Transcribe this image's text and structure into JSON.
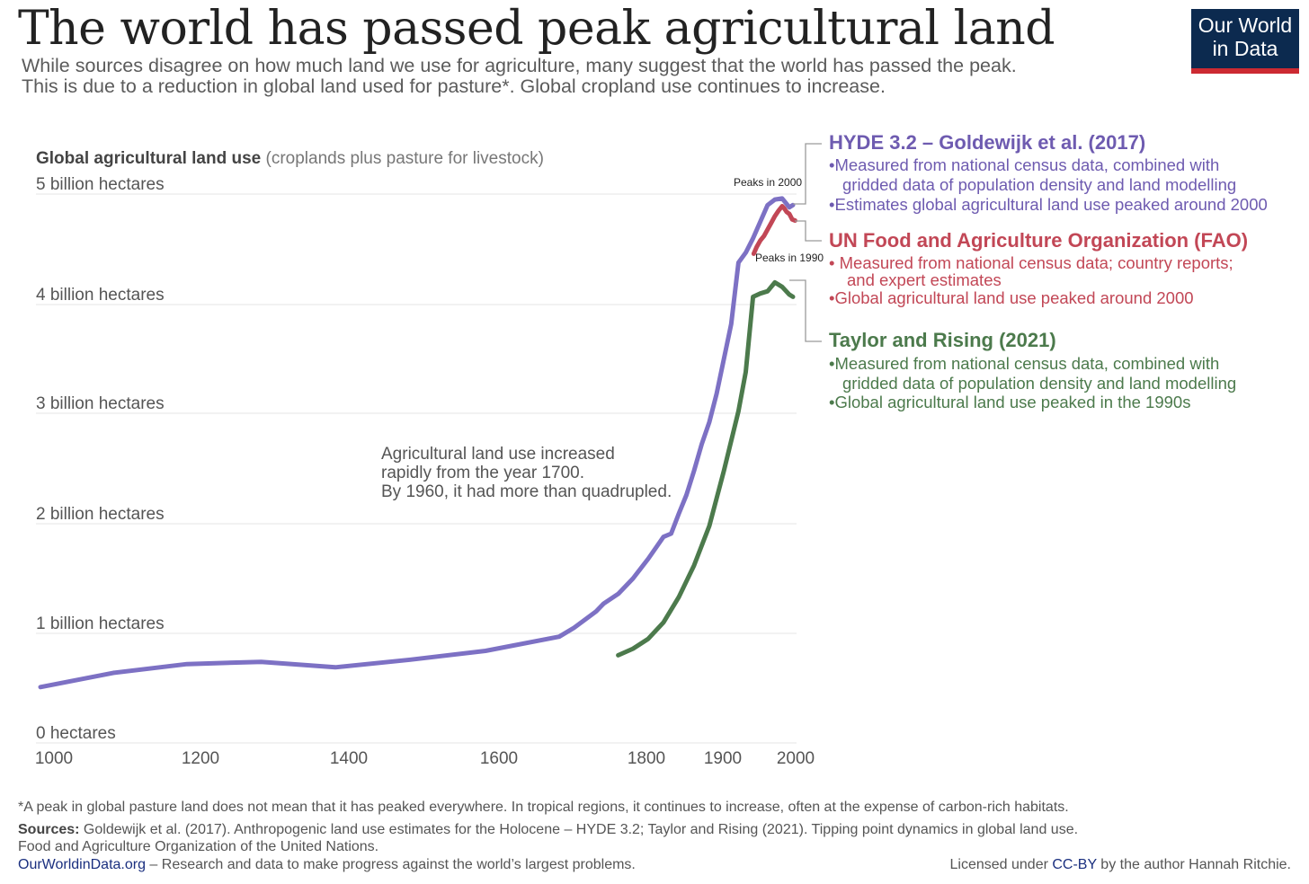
{
  "header": {
    "title": "The world has passed peak agricultural land",
    "subtitle_line1": "While sources disagree on how much land we use for agriculture, many suggest that the world has passed the peak.",
    "subtitle_line2": "This is due to a reduction in global land used for pasture*. Global cropland use continues to increase."
  },
  "logo": {
    "line1": "Our World",
    "line2": "in Data",
    "bg_color": "#0c2a4f",
    "accent_color": "#cc2a32"
  },
  "chart_data": {
    "type": "line",
    "title": "Global agricultural land use",
    "title_note": "(croplands plus pasture for livestock)",
    "ylabel": "billion hectares",
    "ylim": [
      0,
      5
    ],
    "y_ticks": [
      {
        "value": 0,
        "label": "0 hectares"
      },
      {
        "value": 1,
        "label": "1 billion hectares"
      },
      {
        "value": 2,
        "label": "2 billion hectares"
      },
      {
        "value": 3,
        "label": "3 billion hectares"
      },
      {
        "value": 4,
        "label": "4 billion hectares"
      },
      {
        "value": 5,
        "label": "5 billion hectares"
      }
    ],
    "x_ticks": [
      {
        "value": 1000,
        "label": "1000"
      },
      {
        "value": 1200,
        "label": "1200"
      },
      {
        "value": 1400,
        "label": "1400"
      },
      {
        "value": 1600,
        "label": "1600"
      },
      {
        "value": 1800,
        "label": "1800"
      },
      {
        "value": 1900,
        "label": "1900"
      },
      {
        "value": 2000,
        "label": "2000"
      }
    ],
    "series": [
      {
        "name": "HYDE 3.2 – Goldewijk et al. (2017)",
        "color": "#7d71c4",
        "points": [
          [
            1000,
            0.51
          ],
          [
            1100,
            0.64
          ],
          [
            1200,
            0.72
          ],
          [
            1300,
            0.74
          ],
          [
            1400,
            0.69
          ],
          [
            1500,
            0.76
          ],
          [
            1600,
            0.84
          ],
          [
            1700,
            0.97
          ],
          [
            1720,
            1.05
          ],
          [
            1750,
            1.2
          ],
          [
            1760,
            1.27
          ],
          [
            1780,
            1.36
          ],
          [
            1800,
            1.5
          ],
          [
            1820,
            1.68
          ],
          [
            1840,
            1.88
          ],
          [
            1850,
            1.91
          ],
          [
            1860,
            2.09
          ],
          [
            1870,
            2.26
          ],
          [
            1880,
            2.48
          ],
          [
            1890,
            2.72
          ],
          [
            1900,
            2.92
          ],
          [
            1910,
            3.18
          ],
          [
            1920,
            3.5
          ],
          [
            1930,
            3.82
          ],
          [
            1940,
            4.38
          ],
          [
            1950,
            4.47
          ],
          [
            1960,
            4.6
          ],
          [
            1970,
            4.75
          ],
          [
            1980,
            4.9
          ],
          [
            1990,
            4.95
          ],
          [
            2000,
            4.96
          ],
          [
            2005,
            4.92
          ],
          [
            2010,
            4.88
          ],
          [
            2015,
            4.9
          ]
        ]
      },
      {
        "name": "UN Food and Agriculture Organization (FAO)",
        "color": "#c24756",
        "points": [
          [
            1961,
            4.46
          ],
          [
            1965,
            4.52
          ],
          [
            1970,
            4.58
          ],
          [
            1975,
            4.62
          ],
          [
            1980,
            4.68
          ],
          [
            1985,
            4.74
          ],
          [
            1990,
            4.8
          ],
          [
            1995,
            4.85
          ],
          [
            2000,
            4.89
          ],
          [
            2003,
            4.87
          ],
          [
            2006,
            4.84
          ],
          [
            2010,
            4.82
          ],
          [
            2014,
            4.77
          ],
          [
            2018,
            4.76
          ]
        ]
      },
      {
        "name": "Taylor and Rising (2021)",
        "color": "#4c7a4c",
        "points": [
          [
            1780,
            0.8
          ],
          [
            1800,
            0.86
          ],
          [
            1820,
            0.95
          ],
          [
            1840,
            1.1
          ],
          [
            1860,
            1.33
          ],
          [
            1880,
            1.62
          ],
          [
            1900,
            1.98
          ],
          [
            1920,
            2.48
          ],
          [
            1940,
            3.02
          ],
          [
            1950,
            3.38
          ],
          [
            1960,
            4.07
          ],
          [
            1970,
            4.1
          ],
          [
            1980,
            4.12
          ],
          [
            1990,
            4.2
          ],
          [
            2000,
            4.16
          ],
          [
            2010,
            4.09
          ],
          [
            2015,
            4.07
          ]
        ]
      }
    ],
    "annotations": {
      "peak_2000": "Peaks in 2000",
      "peak_1990": "Peaks in 1990",
      "note_line1": "Agricultural land use increased",
      "note_line2": "rapidly from the year 1700.",
      "note_line3": "By 1960, it had more than quadrupled."
    }
  },
  "legend": {
    "hyde": {
      "title": "HYDE 3.2 – Goldewijk et al. (2017)",
      "b1": "•Measured from national census data, combined with",
      "b1b": "gridded data of population density and land modelling",
      "b2": "•Estimates global agricultural land use peaked around 2000"
    },
    "fao": {
      "title": "UN Food and Agriculture Organization (FAO)",
      "b1": "• Measured from national census data; country reports;",
      "b1b": "and expert estimates",
      "b2": "•Global agricultural land use peaked around 2000"
    },
    "taylor": {
      "title": "Taylor and Rising (2021)",
      "b1": "•Measured from national census data, combined with",
      "b1b": "gridded data of population density and land modelling",
      "b2": "•Global agricultural land use peaked in the 1990s"
    }
  },
  "footer": {
    "note": "*A peak in global pasture land does not mean that it has peaked everywhere. In tropical regions, it continues to increase, often at the expense of carbon-rich habitats.",
    "sources_label": "Sources:",
    "sources_line1": " Goldewijk et al. (2017). Anthropogenic land use estimates for the Holocene – HYDE 3.2;  Taylor and Rising (2021). Tipping point dynamics in global land use.",
    "sources_line2": "Food and Agriculture Organization of the United Nations.",
    "site": "OurWorldinData.org",
    "tagline": " – Research and data to make progress against the world’s largest problems.",
    "license_prefix": "Licensed under ",
    "license_link": "CC-BY",
    "license_suffix": " by the author Hannah Ritchie."
  }
}
